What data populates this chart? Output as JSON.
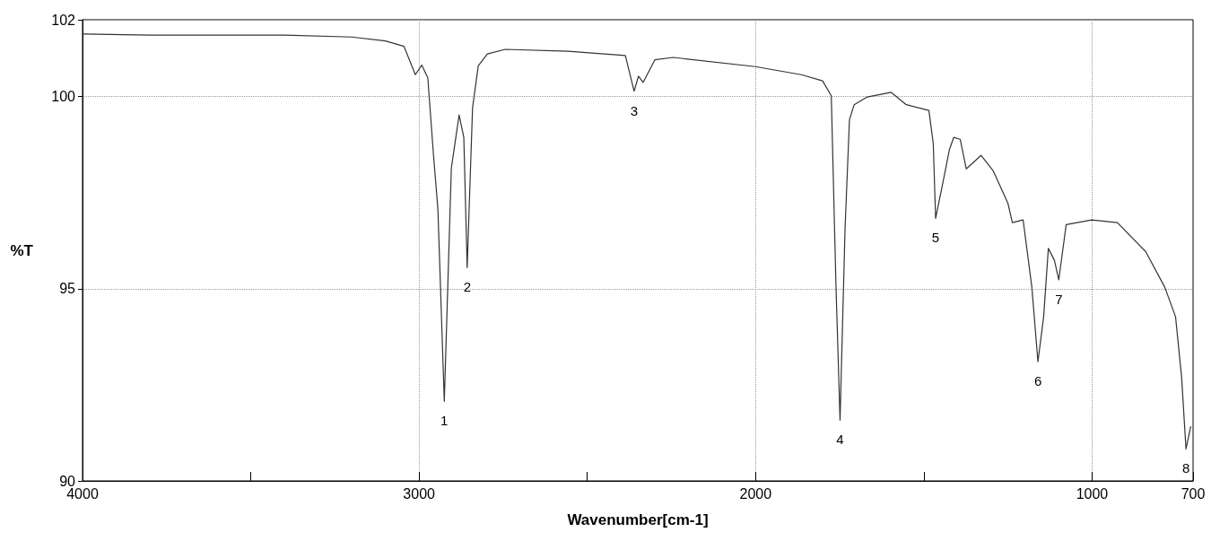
{
  "chart_data": {
    "type": "line",
    "xlabel": "Wavenumber[cm-1]",
    "ylabel": "%T",
    "xlim": [
      4000,
      700
    ],
    "ylim": [
      90,
      102
    ],
    "xticks": [
      4000,
      {
        "value": 3500,
        "label": null
      },
      3000,
      {
        "value": 2500,
        "label": null
      },
      2000,
      {
        "value": 1500,
        "label": null
      },
      1000,
      700
    ],
    "yticks": [
      90,
      95,
      100,
      102
    ],
    "grid": true,
    "marker": "none",
    "line_style": "solid",
    "series": [
      {
        "color": "#333333",
        "x": [
          4000,
          3800,
          3600,
          3400,
          3200,
          3100,
          3045,
          3011,
          2992,
          2974,
          2957,
          2944,
          2925,
          2904,
          2881,
          2867,
          2857,
          2841,
          2824,
          2797,
          2744,
          2557,
          2387,
          2361,
          2348,
          2334,
          2299,
          2245,
          2001,
          1864,
          1801,
          1775,
          1761,
          1749,
          1734,
          1721,
          1707,
          1668,
          1597,
          1552,
          1485,
          1472,
          1465,
          1445,
          1424,
          1411,
          1392,
          1374,
          1330,
          1294,
          1250,
          1237,
          1205,
          1179,
          1161,
          1144,
          1130,
          1112,
          1099,
          1077,
          1001,
          925,
          841,
          784,
          752,
          734,
          721,
          707
        ],
        "values": [
          101.63,
          101.6,
          101.6,
          101.6,
          101.55,
          101.45,
          101.31,
          100.57,
          100.82,
          100.49,
          98.47,
          97.07,
          92.07,
          98.14,
          99.52,
          98.94,
          95.55,
          99.71,
          100.8,
          101.11,
          101.23,
          101.18,
          101.07,
          100.14,
          100.53,
          100.37,
          100.96,
          101.02,
          100.78,
          100.57,
          100.41,
          100.02,
          95.04,
          91.58,
          96.6,
          99.4,
          99.79,
          99.99,
          100.11,
          99.79,
          99.64,
          98.78,
          96.83,
          97.69,
          98.62,
          98.94,
          98.89,
          98.12,
          98.47,
          98.07,
          97.22,
          96.72,
          96.79,
          95.04,
          93.1,
          94.27,
          96.05,
          95.74,
          95.23,
          96.67,
          96.79,
          96.72,
          95.97,
          95.04,
          94.27,
          92.7,
          90.83,
          91.41
        ]
      }
    ],
    "annotations": [
      {
        "text": "1",
        "x": 2925,
        "y": 92.07
      },
      {
        "text": "2",
        "x": 2857,
        "y": 95.55
      },
      {
        "text": "3",
        "x": 2361,
        "y": 100.14
      },
      {
        "text": "4",
        "x": 1749,
        "y": 91.58
      },
      {
        "text": "5",
        "x": 1465,
        "y": 96.83
      },
      {
        "text": "6",
        "x": 1161,
        "y": 93.1
      },
      {
        "text": "7",
        "x": 1099,
        "y": 95.23
      },
      {
        "text": "8",
        "x": 721,
        "y": 90.83
      }
    ]
  }
}
